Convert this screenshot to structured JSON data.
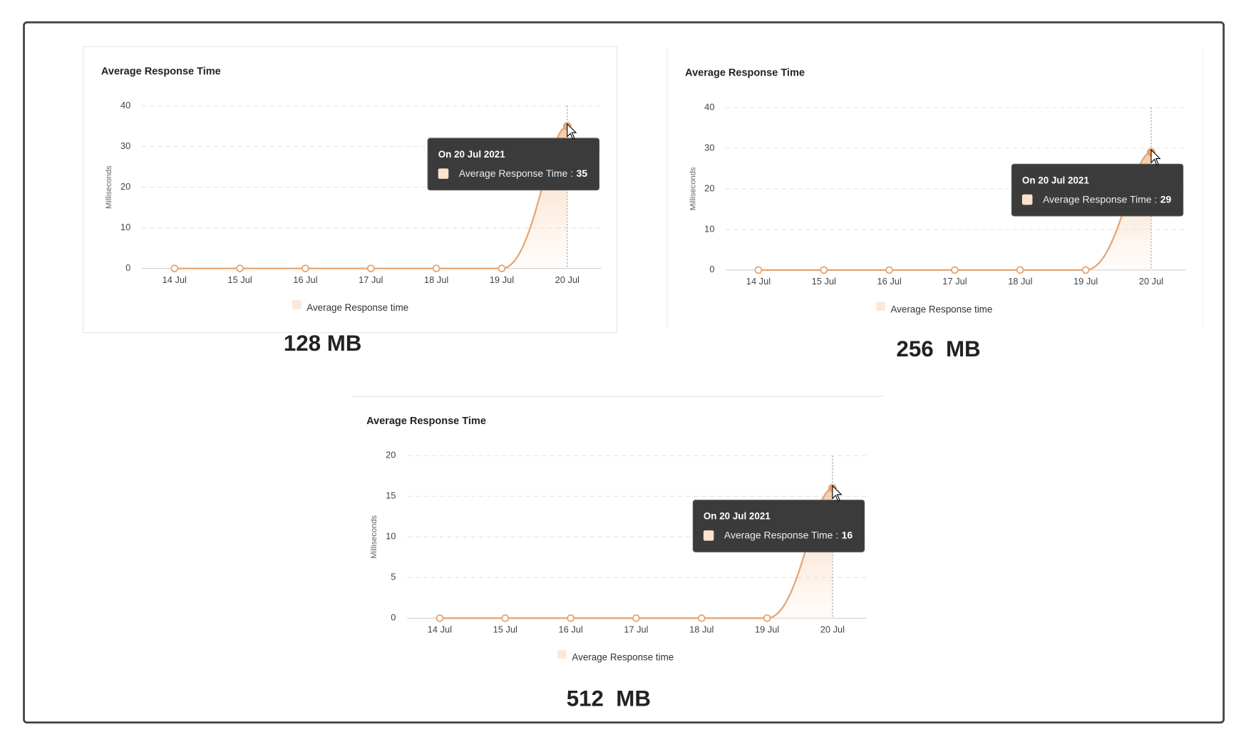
{
  "chart_data": [
    {
      "type": "line",
      "title": "Average Response Time",
      "y_label": "Milliseconds",
      "caption": "128 MB",
      "categories": [
        "14 Jul",
        "15 Jul",
        "16 Jul",
        "17 Jul",
        "18 Jul",
        "19 Jul",
        "20 Jul"
      ],
      "series": [
        {
          "name": "Average Response time",
          "color": "#e3a574",
          "values": [
            0,
            0,
            0,
            0,
            0,
            0,
            35
          ]
        }
      ],
      "ylim": [
        0,
        40
      ],
      "yticks": [
        0,
        10,
        20,
        30,
        40
      ],
      "grid": true,
      "tooltip": {
        "date": "On 20 Jul 2021",
        "label": "Average Response Time :",
        "value": 35
      }
    },
    {
      "type": "line",
      "title": "Average Response Time",
      "y_label": "Milliseconds",
      "caption": "256  MB",
      "categories": [
        "14 Jul",
        "15 Jul",
        "16 Jul",
        "17 Jul",
        "18 Jul",
        "19 Jul",
        "20 Jul"
      ],
      "series": [
        {
          "name": "Average Response time",
          "color": "#e3a574",
          "values": [
            0,
            0,
            0,
            0,
            0,
            0,
            29
          ]
        }
      ],
      "ylim": [
        0,
        40
      ],
      "yticks": [
        0,
        10,
        20,
        30,
        40
      ],
      "grid": true,
      "tooltip": {
        "date": "On 20 Jul 2021",
        "label": "Average Response Time :",
        "value": 29
      }
    },
    {
      "type": "line",
      "title": "Average Response Time",
      "y_label": "Milliseconds",
      "caption": "512  MB",
      "categories": [
        "14 Jul",
        "15 Jul",
        "16 Jul",
        "17 Jul",
        "18 Jul",
        "19 Jul",
        "20 Jul"
      ],
      "series": [
        {
          "name": "Average Response time",
          "color": "#e3a574",
          "values": [
            0,
            0,
            0,
            0,
            0,
            0,
            16
          ]
        }
      ],
      "ylim": [
        0,
        20
      ],
      "yticks": [
        0,
        5,
        10,
        15,
        20
      ],
      "grid": true,
      "tooltip": {
        "date": "On 20 Jul 2021",
        "label": "Average Response Time :",
        "value": 16
      }
    }
  ]
}
